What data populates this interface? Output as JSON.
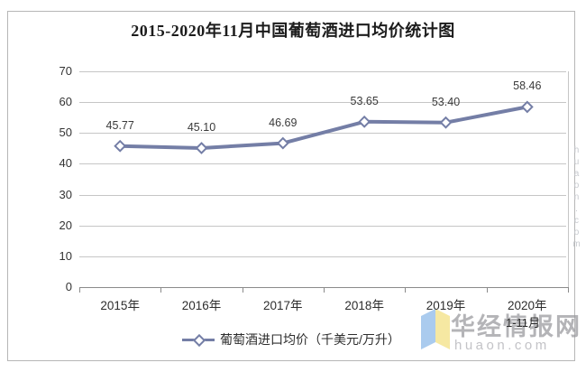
{
  "title": "2015-2020年11月中国葡萄酒进口均价统计图",
  "chart_data": {
    "type": "line",
    "title": "2015-2020年11月中国葡萄酒进口均价统计图",
    "categories": [
      "2015年",
      "2016年",
      "2017年",
      "2018年",
      "2019年",
      "2020年"
    ],
    "last_category_note": "1-11月",
    "series": [
      {
        "name": "葡萄酒进口均价（千美元/万升）",
        "values": [
          45.77,
          45.1,
          46.69,
          53.65,
          53.4,
          58.46
        ]
      }
    ],
    "data_labels": [
      "45.77",
      "45.10",
      "46.69",
      "53.65",
      "53.40",
      "58.46"
    ],
    "ylim": [
      0,
      70
    ],
    "ytick_step": 10,
    "grid": true,
    "legend_position": "bottom",
    "marker": "open-diamond",
    "line_color": "#747EA6"
  },
  "legend": {
    "label": "葡萄酒进口均价（千美元/万升）"
  },
  "watermark": {
    "brand": "华经情报网",
    "domain": "huaon.com",
    "vertical": "huaon.com"
  },
  "colors": {
    "line": "#747EA6",
    "grid": "#C6C6C6",
    "axis": "#8A8A8A",
    "text": "#333333",
    "watermark_gray": "#9B9BA0",
    "logo_blue": "#AACBEE",
    "logo_yellow": "#F6E8A2"
  }
}
